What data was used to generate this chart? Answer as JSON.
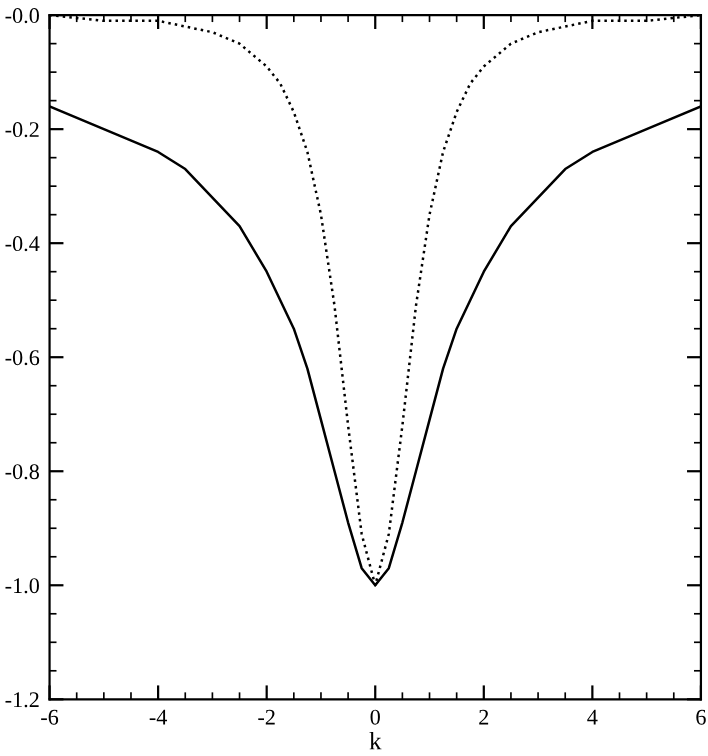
{
  "chart_data": {
    "type": "line",
    "xlabel": "k",
    "x": [
      -6,
      -5,
      -4,
      -3.5,
      -3,
      -2.5,
      -2.25,
      -2,
      -1.75,
      -1.5,
      -1.25,
      -1,
      -0.75,
      -0.5,
      -0.25,
      0,
      0.25,
      0.5,
      0.75,
      1,
      1.25,
      1.5,
      1.75,
      2,
      2.25,
      2.5,
      3,
      3.5,
      4,
      5,
      6
    ],
    "series": [
      {
        "color": "#000000",
        "line_style": "solid",
        "values": [
          -0.16,
          -0.2,
          -0.24,
          -0.27,
          -0.32,
          -0.37,
          -0.41,
          -0.45,
          -0.5,
          -0.55,
          -0.62,
          -0.71,
          -0.8,
          -0.89,
          -0.97,
          -1.0,
          -0.97,
          -0.89,
          -0.8,
          -0.71,
          -0.62,
          -0.55,
          -0.5,
          -0.45,
          -0.41,
          -0.37,
          -0.32,
          -0.27,
          -0.24,
          -0.2,
          -0.16
        ]
      },
      {
        "color": "#000000",
        "line_style": "dotted",
        "values": [
          0.0,
          -0.01,
          -0.01,
          -0.02,
          -0.03,
          -0.05,
          -0.07,
          -0.09,
          -0.12,
          -0.17,
          -0.24,
          -0.35,
          -0.51,
          -0.72,
          -0.91,
          -1.0,
          -0.91,
          -0.72,
          -0.51,
          -0.35,
          -0.24,
          -0.17,
          -0.12,
          -0.09,
          -0.07,
          -0.05,
          -0.03,
          -0.02,
          -0.01,
          -0.01,
          0.0
        ]
      }
    ],
    "xlim": [
      -6,
      6
    ],
    "xticks": [
      -6,
      -4,
      -2,
      0,
      2,
      4,
      6
    ],
    "ylim": [
      -1.2,
      0
    ],
    "yticks": [
      -1.2,
      {
        "value": -1.0,
        "label": "-1.0"
      },
      -0.8,
      -0.6,
      -0.4,
      -0.2,
      {
        "value": 0,
        "label": "-0.0"
      }
    ],
    "grid": false,
    "legend": false,
    "marker": "none"
  }
}
